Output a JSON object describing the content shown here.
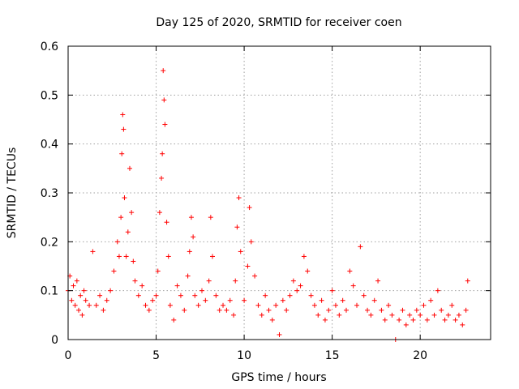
{
  "chart_data": {
    "type": "scatter",
    "title": "Day 125 of 2020, SRMTID for receiver coen",
    "xlabel": "GPS time / hours",
    "ylabel": "SRMTID / TECUs",
    "xlim": [
      0,
      24
    ],
    "ylim": [
      0,
      0.6
    ],
    "xticks": [
      0,
      5,
      10,
      15,
      20
    ],
    "xtick_labels": [
      "0",
      "5",
      "10",
      "15",
      "20"
    ],
    "yticks": [
      0,
      0.1,
      0.2,
      0.3,
      0.4,
      0.5,
      0.6
    ],
    "ytick_labels": [
      "0",
      "0.1",
      "0.2",
      "0.3",
      "0.4",
      "0.5",
      "0.6"
    ],
    "grid": true,
    "series": [
      {
        "name": "SRMTID",
        "color": "#ff0000",
        "marker": "plus",
        "x": [
          0.0,
          0.1,
          0.2,
          0.3,
          0.4,
          0.5,
          0.6,
          0.7,
          0.8,
          0.9,
          1.0,
          1.2,
          1.4,
          1.6,
          1.8,
          2.0,
          2.2,
          2.4,
          2.6,
          2.8,
          2.9,
          3.0,
          3.05,
          3.1,
          3.15,
          3.2,
          3.3,
          3.4,
          3.5,
          3.6,
          3.7,
          3.8,
          4.0,
          4.2,
          4.4,
          4.6,
          4.8,
          5.0,
          5.1,
          5.2,
          5.3,
          5.35,
          5.4,
          5.45,
          5.5,
          5.6,
          5.7,
          5.8,
          6.0,
          6.2,
          6.4,
          6.6,
          6.8,
          6.9,
          7.0,
          7.1,
          7.2,
          7.4,
          7.6,
          7.8,
          8.0,
          8.1,
          8.2,
          8.4,
          8.6,
          8.8,
          9.0,
          9.2,
          9.4,
          9.5,
          9.6,
          9.7,
          9.8,
          10.0,
          10.2,
          10.3,
          10.4,
          10.6,
          10.8,
          11.0,
          11.2,
          11.4,
          11.6,
          11.8,
          12.0,
          12.2,
          12.4,
          12.6,
          12.8,
          13.0,
          13.2,
          13.4,
          13.6,
          13.8,
          14.0,
          14.2,
          14.4,
          14.6,
          14.8,
          15.0,
          15.2,
          15.4,
          15.6,
          15.8,
          16.0,
          16.2,
          16.4,
          16.6,
          16.8,
          17.0,
          17.2,
          17.4,
          17.6,
          17.8,
          18.0,
          18.2,
          18.4,
          18.6,
          18.8,
          19.0,
          19.2,
          19.4,
          19.6,
          19.8,
          20.0,
          20.2,
          20.4,
          20.6,
          20.8,
          21.0,
          21.2,
          21.4,
          21.6,
          21.8,
          22.0,
          22.2,
          22.4,
          22.6,
          22.7
        ],
        "y": [
          0.1,
          0.13,
          0.08,
          0.11,
          0.07,
          0.12,
          0.06,
          0.09,
          0.05,
          0.1,
          0.08,
          0.07,
          0.18,
          0.07,
          0.09,
          0.06,
          0.08,
          0.1,
          0.14,
          0.2,
          0.17,
          0.25,
          0.38,
          0.46,
          0.43,
          0.29,
          0.17,
          0.22,
          0.35,
          0.26,
          0.16,
          0.12,
          0.09,
          0.11,
          0.07,
          0.06,
          0.08,
          0.09,
          0.14,
          0.26,
          0.33,
          0.38,
          0.55,
          0.49,
          0.44,
          0.24,
          0.17,
          0.07,
          0.04,
          0.11,
          0.09,
          0.06,
          0.13,
          0.18,
          0.25,
          0.21,
          0.09,
          0.07,
          0.1,
          0.08,
          0.12,
          0.25,
          0.17,
          0.09,
          0.06,
          0.07,
          0.06,
          0.08,
          0.05,
          0.12,
          0.23,
          0.29,
          0.18,
          0.08,
          0.15,
          0.27,
          0.2,
          0.13,
          0.07,
          0.05,
          0.09,
          0.06,
          0.04,
          0.07,
          0.01,
          0.08,
          0.06,
          0.09,
          0.12,
          0.1,
          0.11,
          0.17,
          0.14,
          0.09,
          0.07,
          0.05,
          0.08,
          0.04,
          0.06,
          0.1,
          0.07,
          0.05,
          0.08,
          0.06,
          0.14,
          0.11,
          0.07,
          0.19,
          0.09,
          0.06,
          0.05,
          0.08,
          0.12,
          0.06,
          0.04,
          0.07,
          0.05,
          0.0,
          0.04,
          0.06,
          0.03,
          0.05,
          0.04,
          0.06,
          0.05,
          0.07,
          0.04,
          0.08,
          0.05,
          0.1,
          0.06,
          0.04,
          0.05,
          0.07,
          0.04,
          0.05,
          0.03,
          0.06,
          0.12
        ]
      }
    ]
  }
}
